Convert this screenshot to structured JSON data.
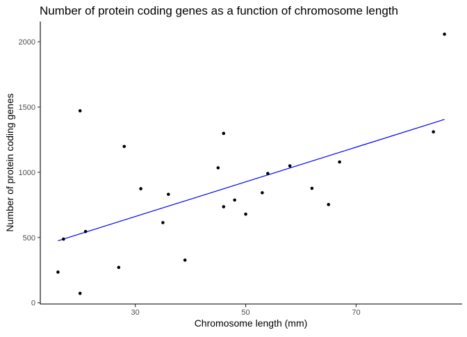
{
  "chart_data": {
    "type": "scatter",
    "title": "Number of protein coding genes as a function of chromosome length",
    "xlabel": "Chromosome length (mm)",
    "ylabel": "Number of protein coding genes",
    "xlim": [
      12.8,
      89.2
    ],
    "ylim": [
      -12,
      2155
    ],
    "x_ticks": [
      30,
      50,
      70
    ],
    "y_ticks": [
      0,
      500,
      1000,
      1500,
      2000
    ],
    "grid": false,
    "legend": "none",
    "points": [
      {
        "x": 16,
        "y": 235
      },
      {
        "x": 17,
        "y": 488
      },
      {
        "x": 20,
        "y": 72
      },
      {
        "x": 20,
        "y": 1471
      },
      {
        "x": 21,
        "y": 546
      },
      {
        "x": 27,
        "y": 271
      },
      {
        "x": 28,
        "y": 1198
      },
      {
        "x": 31,
        "y": 874
      },
      {
        "x": 35,
        "y": 614
      },
      {
        "x": 36,
        "y": 831
      },
      {
        "x": 39,
        "y": 327
      },
      {
        "x": 45,
        "y": 1034
      },
      {
        "x": 46,
        "y": 736
      },
      {
        "x": 46,
        "y": 1298
      },
      {
        "x": 48,
        "y": 787
      },
      {
        "x": 50,
        "y": 679
      },
      {
        "x": 53,
        "y": 843
      },
      {
        "x": 54,
        "y": 991
      },
      {
        "x": 58,
        "y": 1049
      },
      {
        "x": 62,
        "y": 877
      },
      {
        "x": 65,
        "y": 753
      },
      {
        "x": 67,
        "y": 1079
      },
      {
        "x": 84,
        "y": 1310
      },
      {
        "x": 86,
        "y": 2058
      }
    ],
    "trend_line": {
      "x": [
        16,
        86
      ],
      "y": [
        475,
        1405
      ],
      "color": "#0000ff"
    },
    "point_color": "#000000"
  }
}
